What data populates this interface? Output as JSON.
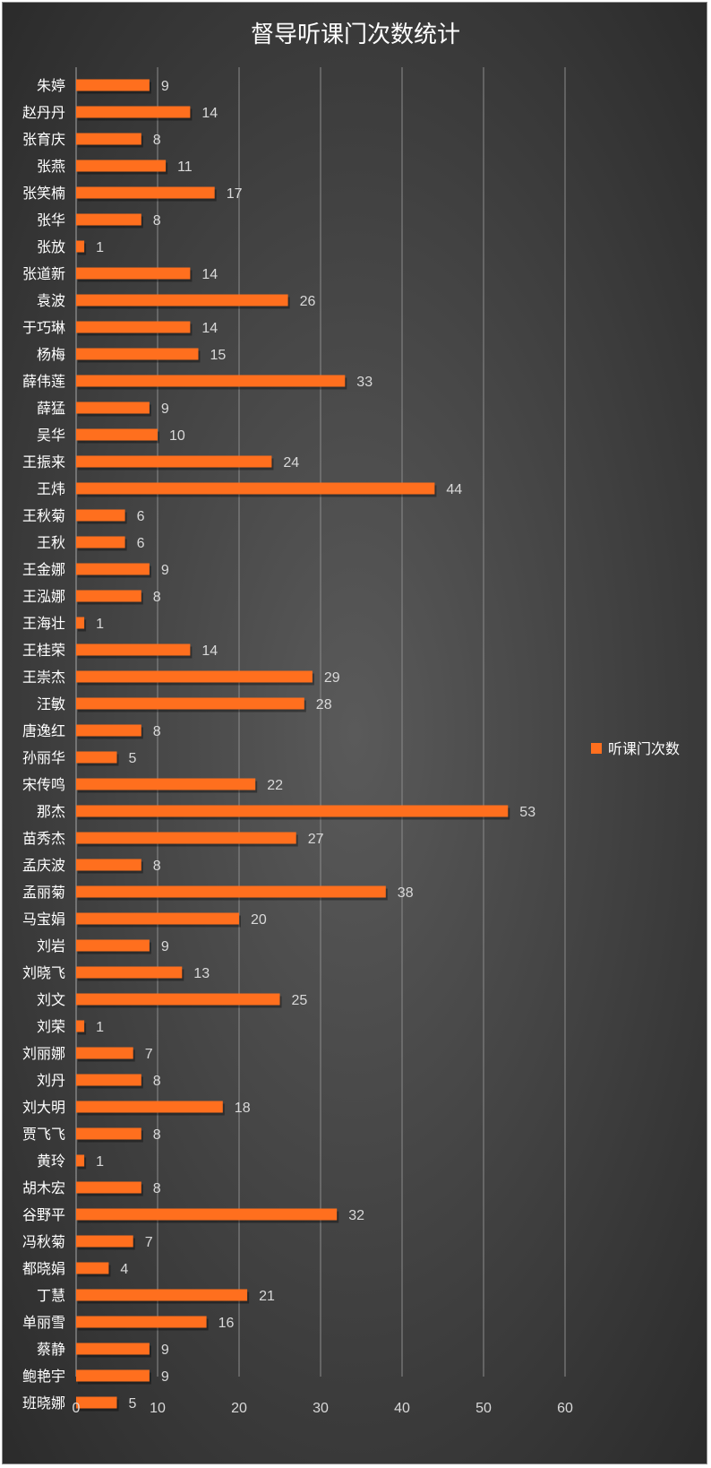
{
  "chart_data": {
    "type": "bar",
    "orientation": "horizontal",
    "title": "督导听课门次数统计",
    "categories": [
      "朱婷",
      "赵丹丹",
      "张育庆",
      "张燕",
      "张笑楠",
      "张华",
      "张放",
      "张道新",
      "袁波",
      "于巧琳",
      "杨梅",
      "薛伟莲",
      "薛猛",
      "吴华",
      "王振来",
      "王炜",
      "王秋菊",
      "王秋",
      "王金娜",
      "王泓娜",
      "王海壮",
      "王桂荣",
      "王崇杰",
      "汪敏",
      "唐逸红",
      "孙丽华",
      "宋传鸣",
      "那杰",
      "苗秀杰",
      "孟庆波",
      "孟丽菊",
      "马宝娟",
      "刘岩",
      "刘晓飞",
      "刘文",
      "刘荣",
      "刘丽娜",
      "刘丹",
      "刘大明",
      "贾飞飞",
      "黄玲",
      "胡木宏",
      "谷野平",
      "冯秋菊",
      "都晓娟",
      "丁慧",
      "单丽雪",
      "蔡静",
      "鲍艳宇",
      "班晓娜"
    ],
    "series": [
      {
        "name": "听课门次数",
        "color": "#ff6f1e",
        "values": [
          9,
          14,
          8,
          11,
          17,
          8,
          1,
          14,
          26,
          14,
          15,
          33,
          9,
          10,
          24,
          44,
          6,
          6,
          9,
          8,
          1,
          14,
          29,
          28,
          8,
          5,
          22,
          53,
          27,
          8,
          38,
          20,
          9,
          13,
          25,
          1,
          7,
          8,
          18,
          8,
          1,
          8,
          32,
          7,
          4,
          21,
          16,
          9,
          9,
          5
        ]
      }
    ],
    "xlim": [
      0,
      60
    ],
    "xticks": [
      "0",
      "10",
      "20",
      "30",
      "40",
      "50",
      "60"
    ],
    "grid": true,
    "data_labels": true,
    "legend_position": "right"
  }
}
